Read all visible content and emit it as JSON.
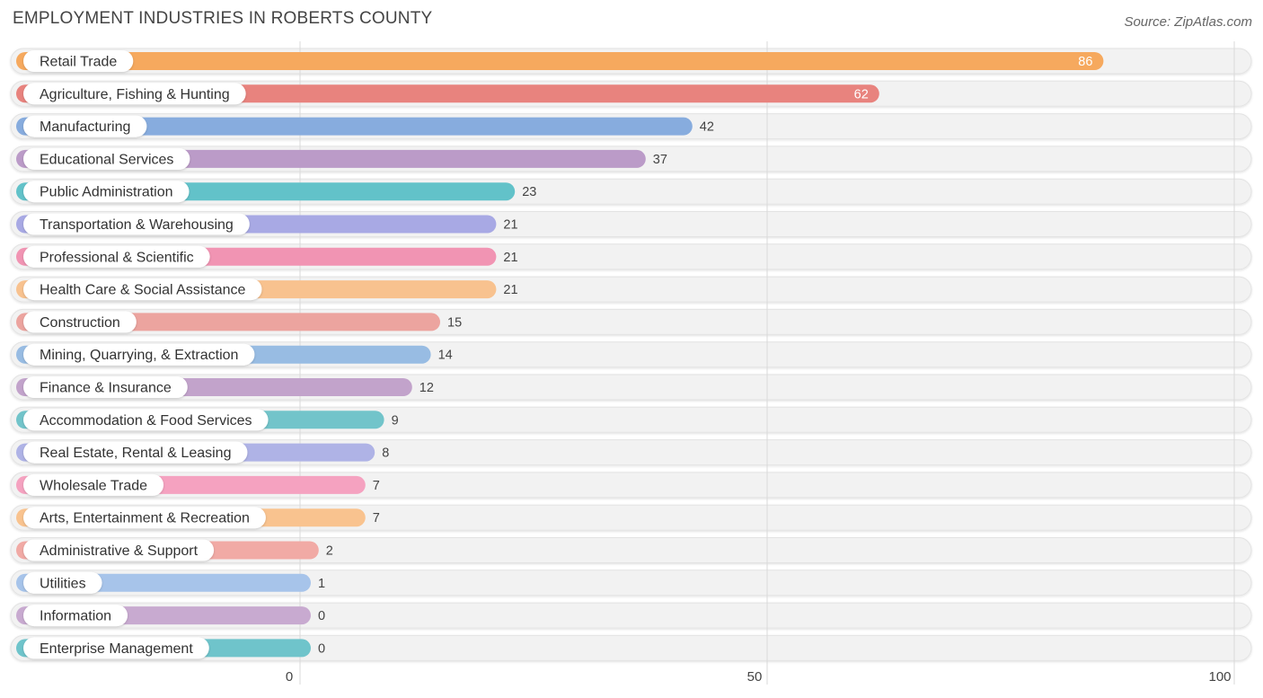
{
  "header": {
    "title": "EMPLOYMENT INDUSTRIES IN ROBERTS COUNTY",
    "source": "Source: ZipAtlas.com"
  },
  "chart_data": {
    "type": "bar",
    "orientation": "horizontal",
    "title": "EMPLOYMENT INDUSTRIES IN ROBERTS COUNTY",
    "categories": [
      "Retail Trade",
      "Agriculture, Fishing & Hunting",
      "Manufacturing",
      "Educational Services",
      "Public Administration",
      "Transportation & Warehousing",
      "Professional & Scientific",
      "Health Care & Social Assistance",
      "Construction",
      "Mining, Quarrying, & Extraction",
      "Finance & Insurance",
      "Accommodation & Food Services",
      "Real Estate, Rental & Leasing",
      "Wholesale Trade",
      "Arts, Entertainment & Recreation",
      "Administrative & Support",
      "Utilities",
      "Information",
      "Enterprise Management"
    ],
    "values": [
      86,
      62,
      42,
      37,
      23,
      21,
      21,
      21,
      15,
      14,
      12,
      9,
      8,
      7,
      7,
      2,
      1,
      0,
      0
    ],
    "colors": [
      "#f6a95e",
      "#e8837e",
      "#87acde",
      "#bb9bc8",
      "#62c2c9",
      "#a8a9e4",
      "#f194b3",
      "#f8c28f",
      "#eca49f",
      "#98bce3",
      "#c2a3cb",
      "#72c4ca",
      "#afb3e6",
      "#f5a2c0",
      "#f9c38f",
      "#f1aaa5",
      "#a7c4ea",
      "#c8aad0",
      "#6fc4cb"
    ],
    "xlim": [
      0,
      100
    ],
    "xticks": [
      0,
      50,
      100
    ],
    "grid": true
  }
}
